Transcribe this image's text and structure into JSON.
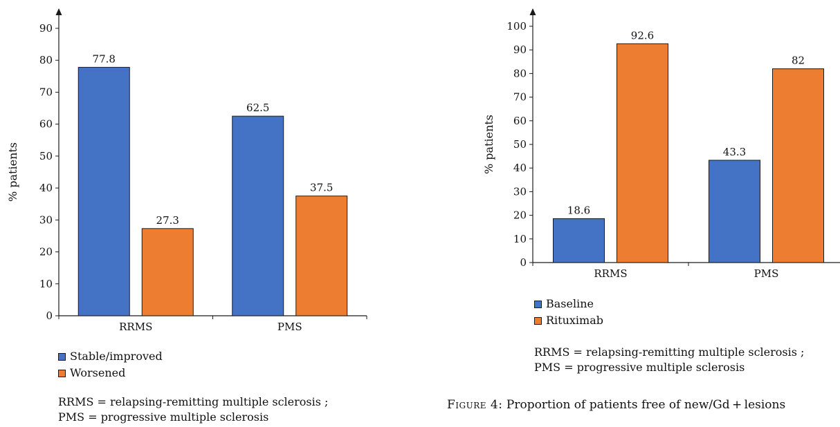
{
  "colors": {
    "blue": "#4472c4",
    "orange": "#ed7d31",
    "axis": "#1a1a1a"
  },
  "chart_data": [
    {
      "type": "bar",
      "title": "",
      "xlabel": "",
      "ylabel": "% patients",
      "ylim": [
        0,
        90
      ],
      "yticks": [
        0,
        10,
        20,
        30,
        40,
        50,
        60,
        70,
        80,
        90
      ],
      "categories": [
        "RRMS",
        "PMS"
      ],
      "series": [
        {
          "name": "Stable/improved",
          "color": "#4472c4",
          "values": [
            77.8,
            62.5
          ],
          "labels": [
            "77.8",
            "62.5"
          ]
        },
        {
          "name": "Worsened",
          "color": "#ed7d31",
          "values": [
            27.3,
            37.5
          ],
          "labels": [
            "27.3",
            "37.5"
          ]
        }
      ],
      "legend": "bottom-left",
      "grid": false,
      "footnote": [
        "RRMS = relapsing-remitting multiple sclerosis ;",
        "PMS = progressive multiple sclerosis"
      ]
    },
    {
      "type": "bar",
      "title": "",
      "xlabel": "",
      "ylabel": "% patients",
      "ylim": [
        0,
        100
      ],
      "yticks": [
        0,
        10,
        20,
        30,
        40,
        50,
        60,
        70,
        80,
        90,
        100
      ],
      "categories": [
        "RRMS",
        "PMS"
      ],
      "series": [
        {
          "name": "Baseline",
          "color": "#4472c4",
          "values": [
            18.6,
            43.3
          ],
          "labels": [
            "18.6",
            "43.3"
          ]
        },
        {
          "name": "Rituximab",
          "color": "#ed7d31",
          "values": [
            92.6,
            82
          ],
          "labels": [
            "92.6",
            "82"
          ]
        }
      ],
      "legend": "bottom-left",
      "grid": false,
      "footnote": [
        "RRMS = relapsing-remitting multiple sclerosis ;",
        "PMS = progressive multiple sclerosis"
      ]
    }
  ],
  "caption": {
    "label": "Figure 4:",
    "text": "Proportion of patients free of new/Gd + lesions"
  }
}
